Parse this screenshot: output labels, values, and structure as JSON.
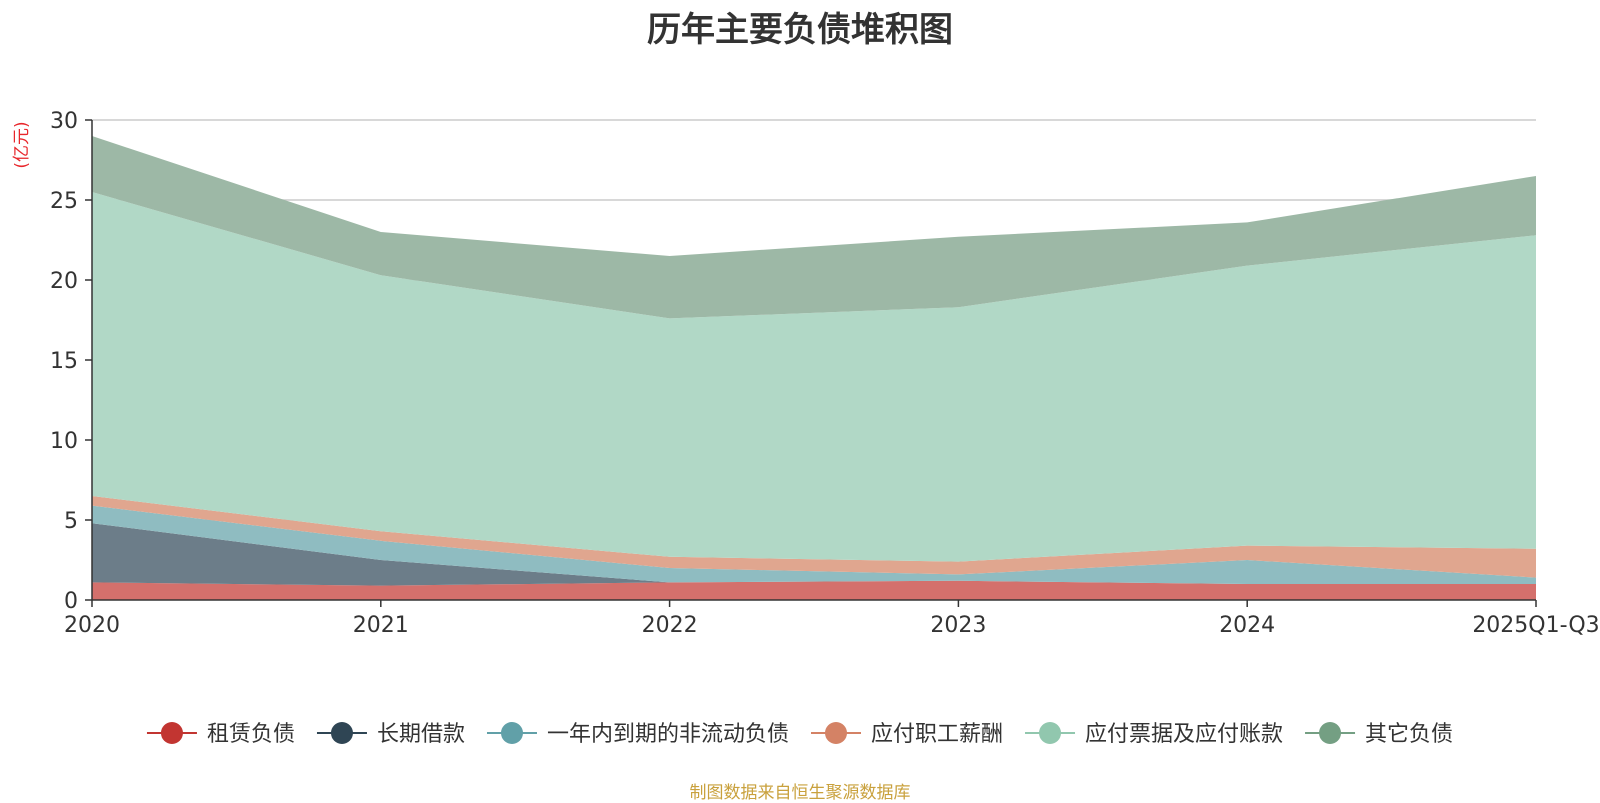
{
  "chart_data": {
    "type": "area",
    "stacked": true,
    "title": "历年主要负债堆积图",
    "ylabel": "(亿元)",
    "ylim": [
      0,
      30
    ],
    "yticks": [
      0,
      5,
      10,
      15,
      20,
      25,
      30
    ],
    "categories": [
      "2020",
      "2021",
      "2022",
      "2023",
      "2024",
      "2025Q1-Q3"
    ],
    "grid": true,
    "legend_position": "bottom",
    "series": [
      {
        "name": "租赁负债",
        "color": "#c23531",
        "fill": "#d4706c",
        "values": [
          1.1,
          0.9,
          1.1,
          1.2,
          1.0,
          1.0
        ]
      },
      {
        "name": "长期借款",
        "color": "#2f4554",
        "fill": "#6c7d89",
        "values": [
          3.7,
          1.6,
          0.0,
          0.0,
          0.0,
          0.0
        ]
      },
      {
        "name": "一年内到期的非流动负债",
        "color": "#61a0a8",
        "fill": "#8fbcc1",
        "values": [
          1.1,
          1.2,
          0.9,
          0.4,
          1.5,
          0.4
        ]
      },
      {
        "name": "应付职工薪酬",
        "color": "#d48265",
        "fill": "#e0a68f",
        "values": [
          0.6,
          0.6,
          0.7,
          0.8,
          0.9,
          1.8
        ]
      },
      {
        "name": "应付票据及应付账款",
        "color": "#91c7ae",
        "fill": "#b1d8c6",
        "values": [
          19.0,
          16.0,
          14.9,
          15.9,
          17.5,
          19.6
        ]
      },
      {
        "name": "其它负债",
        "color": "#749f83",
        "fill": "#9db8a6",
        "values": [
          3.5,
          2.7,
          3.9,
          4.4,
          2.7,
          3.7
        ]
      }
    ]
  },
  "footer": {
    "source": "制图数据来自恒生聚源数据库"
  }
}
